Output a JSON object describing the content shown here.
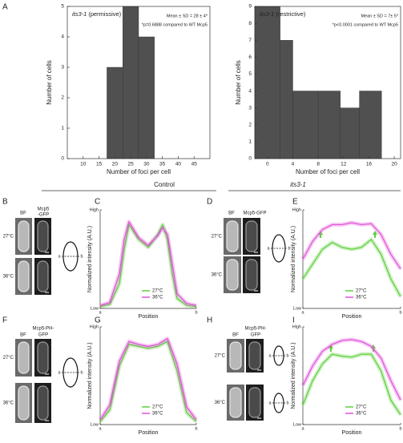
{
  "panel_a_label": "A",
  "sections": [
    {
      "label": "Control"
    },
    {
      "label": "its3-1"
    }
  ],
  "chart_data": [
    {
      "type": "histogram",
      "panel": "A",
      "title_gene": "its3-1",
      "title_condition": "(permissive)",
      "annotations": [
        "Mean ± SD = 28 ± 4*",
        "*p=0.6888 compared to WT Mcp5"
      ],
      "xlabel": "Number of foci per cell",
      "ylabel": "Number of cells",
      "bins": [
        17.5,
        22.5,
        27.5,
        32.5
      ],
      "values": [
        3,
        5,
        4
      ],
      "color": "#505050",
      "xlim": [
        5,
        50
      ],
      "xticks": [
        10,
        15,
        20,
        25,
        30,
        35,
        40,
        45
      ],
      "ylim": [
        0,
        5
      ],
      "yticks": [
        0,
        1,
        2,
        3,
        4,
        5
      ]
    },
    {
      "type": "histogram",
      "panel": "",
      "title_gene": "its3-1",
      "title_condition": "(restrictive)",
      "annotations": [
        "Mean ± SD = 7± 5*",
        "*p<0.0001 compared to WT Mcp5"
      ],
      "xlabel": "Number of foci per cell",
      "ylabel": "Number of cells",
      "bins": [
        -2,
        2,
        4,
        8,
        11.5,
        14.5,
        18
      ],
      "values": [
        9,
        7,
        4,
        4,
        3,
        4
      ],
      "color": "#505050",
      "xlim": [
        -2,
        21
      ],
      "xticks": [
        0,
        4,
        8,
        12,
        16,
        20
      ],
      "ylim": [
        0,
        9
      ],
      "yticks": [
        0,
        1,
        2,
        3,
        4,
        5,
        6,
        7,
        8,
        9
      ]
    },
    {
      "type": "line",
      "panel": "C",
      "xlabel": "Position",
      "ylabel": "Normalized intensity (A.U.)",
      "x": [
        0,
        0.1,
        0.2,
        0.25,
        0.3,
        0.4,
        0.5,
        0.6,
        0.65,
        0.7,
        0.75,
        0.8,
        0.9,
        1
      ],
      "series": [
        {
          "name": "27°C",
          "color": "#5ccf3a",
          "values": [
            0.02,
            0.04,
            0.25,
            0.6,
            0.85,
            0.7,
            0.62,
            0.75,
            0.85,
            0.7,
            0.35,
            0.1,
            0.03,
            0.02
          ]
        },
        {
          "name": "36°C",
          "color": "#e050d8",
          "values": [
            0.03,
            0.06,
            0.35,
            0.7,
            0.88,
            0.72,
            0.64,
            0.74,
            0.82,
            0.75,
            0.45,
            0.15,
            0.05,
            0.03
          ]
        }
      ],
      "xlim": [
        0,
        1
      ],
      "xticks": [
        {
          "value": 0,
          "label": "a"
        },
        {
          "value": 1,
          "label": "b"
        }
      ],
      "ylim": [
        0,
        1
      ],
      "yticks": [
        {
          "value": 0,
          "label": "Low"
        },
        {
          "value": 1,
          "label": "High"
        }
      ]
    },
    {
      "type": "line",
      "panel": "E",
      "xlabel": "Position",
      "ylabel": "Normalized intensity (A.U.)",
      "x": [
        0,
        0.1,
        0.2,
        0.3,
        0.4,
        0.5,
        0.6,
        0.7,
        0.8,
        0.9,
        1
      ],
      "series": [
        {
          "name": "27°C",
          "color": "#5ccf3a",
          "values": [
            0.3,
            0.45,
            0.6,
            0.67,
            0.62,
            0.6,
            0.62,
            0.7,
            0.55,
            0.3,
            0.12
          ]
        },
        {
          "name": "36°C",
          "color": "#e050d8",
          "values": [
            0.5,
            0.68,
            0.8,
            0.85,
            0.85,
            0.87,
            0.85,
            0.86,
            0.75,
            0.55,
            0.4
          ]
        }
      ],
      "xlim": [
        0,
        1
      ],
      "xticks": [
        {
          "value": 0,
          "label": "a"
        },
        {
          "value": 1,
          "label": "b"
        }
      ],
      "ylim": [
        0,
        1
      ],
      "yticks": [
        {
          "value": 0,
          "label": "Low"
        },
        {
          "value": 1,
          "label": "High"
        }
      ]
    },
    {
      "type": "line",
      "panel": "G",
      "xlabel": "Position",
      "ylabel": "Normalized intensity (A.U.)",
      "x": [
        0,
        0.1,
        0.2,
        0.3,
        0.4,
        0.5,
        0.6,
        0.7,
        0.8,
        0.9,
        1
      ],
      "series": [
        {
          "name": "27°C",
          "color": "#5ccf3a",
          "values": [
            0.03,
            0.15,
            0.6,
            0.82,
            0.8,
            0.78,
            0.8,
            0.85,
            0.55,
            0.12,
            0.03
          ]
        },
        {
          "name": "36°C",
          "color": "#e050d8",
          "values": [
            0.05,
            0.2,
            0.65,
            0.85,
            0.82,
            0.8,
            0.82,
            0.88,
            0.62,
            0.18,
            0.05
          ]
        }
      ],
      "xlim": [
        0,
        1
      ],
      "xticks": [
        {
          "value": 0,
          "label": "a"
        },
        {
          "value": 1,
          "label": "b"
        }
      ],
      "ylim": [
        0,
        1
      ],
      "yticks": [
        {
          "value": 0,
          "label": "Low"
        },
        {
          "value": 1,
          "label": "High"
        }
      ]
    },
    {
      "type": "line",
      "panel": "I",
      "xlabel": "Position",
      "ylabel": "Normalized intensity (A.U.)",
      "x": [
        0,
        0.1,
        0.2,
        0.3,
        0.4,
        0.5,
        0.6,
        0.7,
        0.8,
        0.9,
        1
      ],
      "series": [
        {
          "name": "27°C",
          "color": "#5ccf3a",
          "values": [
            0.2,
            0.45,
            0.62,
            0.72,
            0.7,
            0.69,
            0.72,
            0.72,
            0.55,
            0.25,
            0.1
          ]
        },
        {
          "name": "36°C",
          "color": "#e050d8",
          "values": [
            0.4,
            0.6,
            0.75,
            0.82,
            0.86,
            0.87,
            0.85,
            0.8,
            0.68,
            0.45,
            0.25
          ]
        }
      ],
      "xlim": [
        0,
        1
      ],
      "xticks": [
        {
          "value": 0,
          "label": "a"
        },
        {
          "value": 1,
          "label": "b"
        }
      ],
      "ylim": [
        0,
        1
      ],
      "yticks": [
        {
          "value": 0,
          "label": "Low"
        },
        {
          "value": 1,
          "label": "High"
        }
      ]
    }
  ],
  "image_panels": [
    {
      "panel": "B",
      "channel_labels": [
        "BF",
        "Mcp5",
        "-GFP"
      ],
      "temperatures": [
        "27°C",
        "36°C"
      ],
      "diagram_ends": [
        "a",
        "b"
      ]
    },
    {
      "panel": "D",
      "channel_labels": [
        "BF",
        "Mcp5-GFP"
      ],
      "temperatures": [
        "27°C",
        "36°C"
      ],
      "diagram_ends": [
        "a",
        "b"
      ]
    },
    {
      "panel": "F",
      "channel_labels": [
        "BF",
        "Mcp5-PH-",
        "GFP"
      ],
      "temperatures": [
        "27°C",
        "36°C"
      ],
      "diagram_ends": [
        "a",
        "b"
      ]
    },
    {
      "panel": "H",
      "channel_labels": [
        "BF",
        "Mcp5-PH-",
        "GFP"
      ],
      "temperatures": [
        "27°C",
        "36°C"
      ],
      "diagram_ends": [
        "a",
        "b",
        "a",
        "b"
      ]
    }
  ]
}
